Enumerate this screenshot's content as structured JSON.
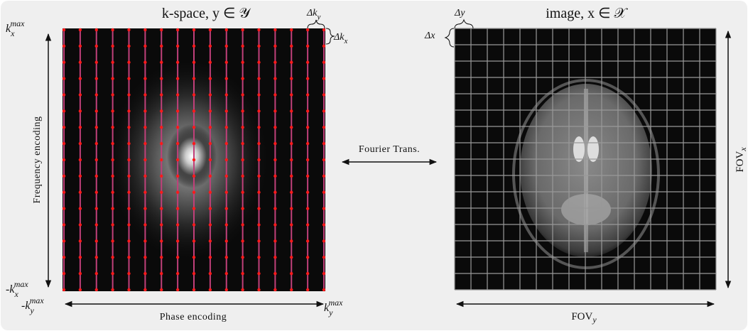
{
  "kspace": {
    "title": "k-space, y ∈ 𝒴",
    "kx_max": {
      "base": "k",
      "sub": "x",
      "sup": "max"
    },
    "kx_min": {
      "base": "-k",
      "sub": "x",
      "sup": "max"
    },
    "ky_min": {
      "base": "-k",
      "sub": "y",
      "sup": "max"
    },
    "ky_max": {
      "base": "k",
      "sub": "y",
      "sup": "max"
    },
    "delta_ky": {
      "base": "Δk",
      "sub": "y"
    },
    "delta_kx": {
      "base": "Δk",
      "sub": "x"
    },
    "y_axis_label": "Frequency encoding",
    "x_axis_label": "Phase encoding"
  },
  "transform": {
    "label": "Fourier Trans."
  },
  "image": {
    "title": "image, x ∈ 𝒳",
    "delta_y": "Δy",
    "delta_x": "Δx",
    "fov_x": {
      "base": "FOV",
      "sub": "x"
    },
    "fov_y": {
      "base": "FOV",
      "sub": "y"
    }
  }
}
